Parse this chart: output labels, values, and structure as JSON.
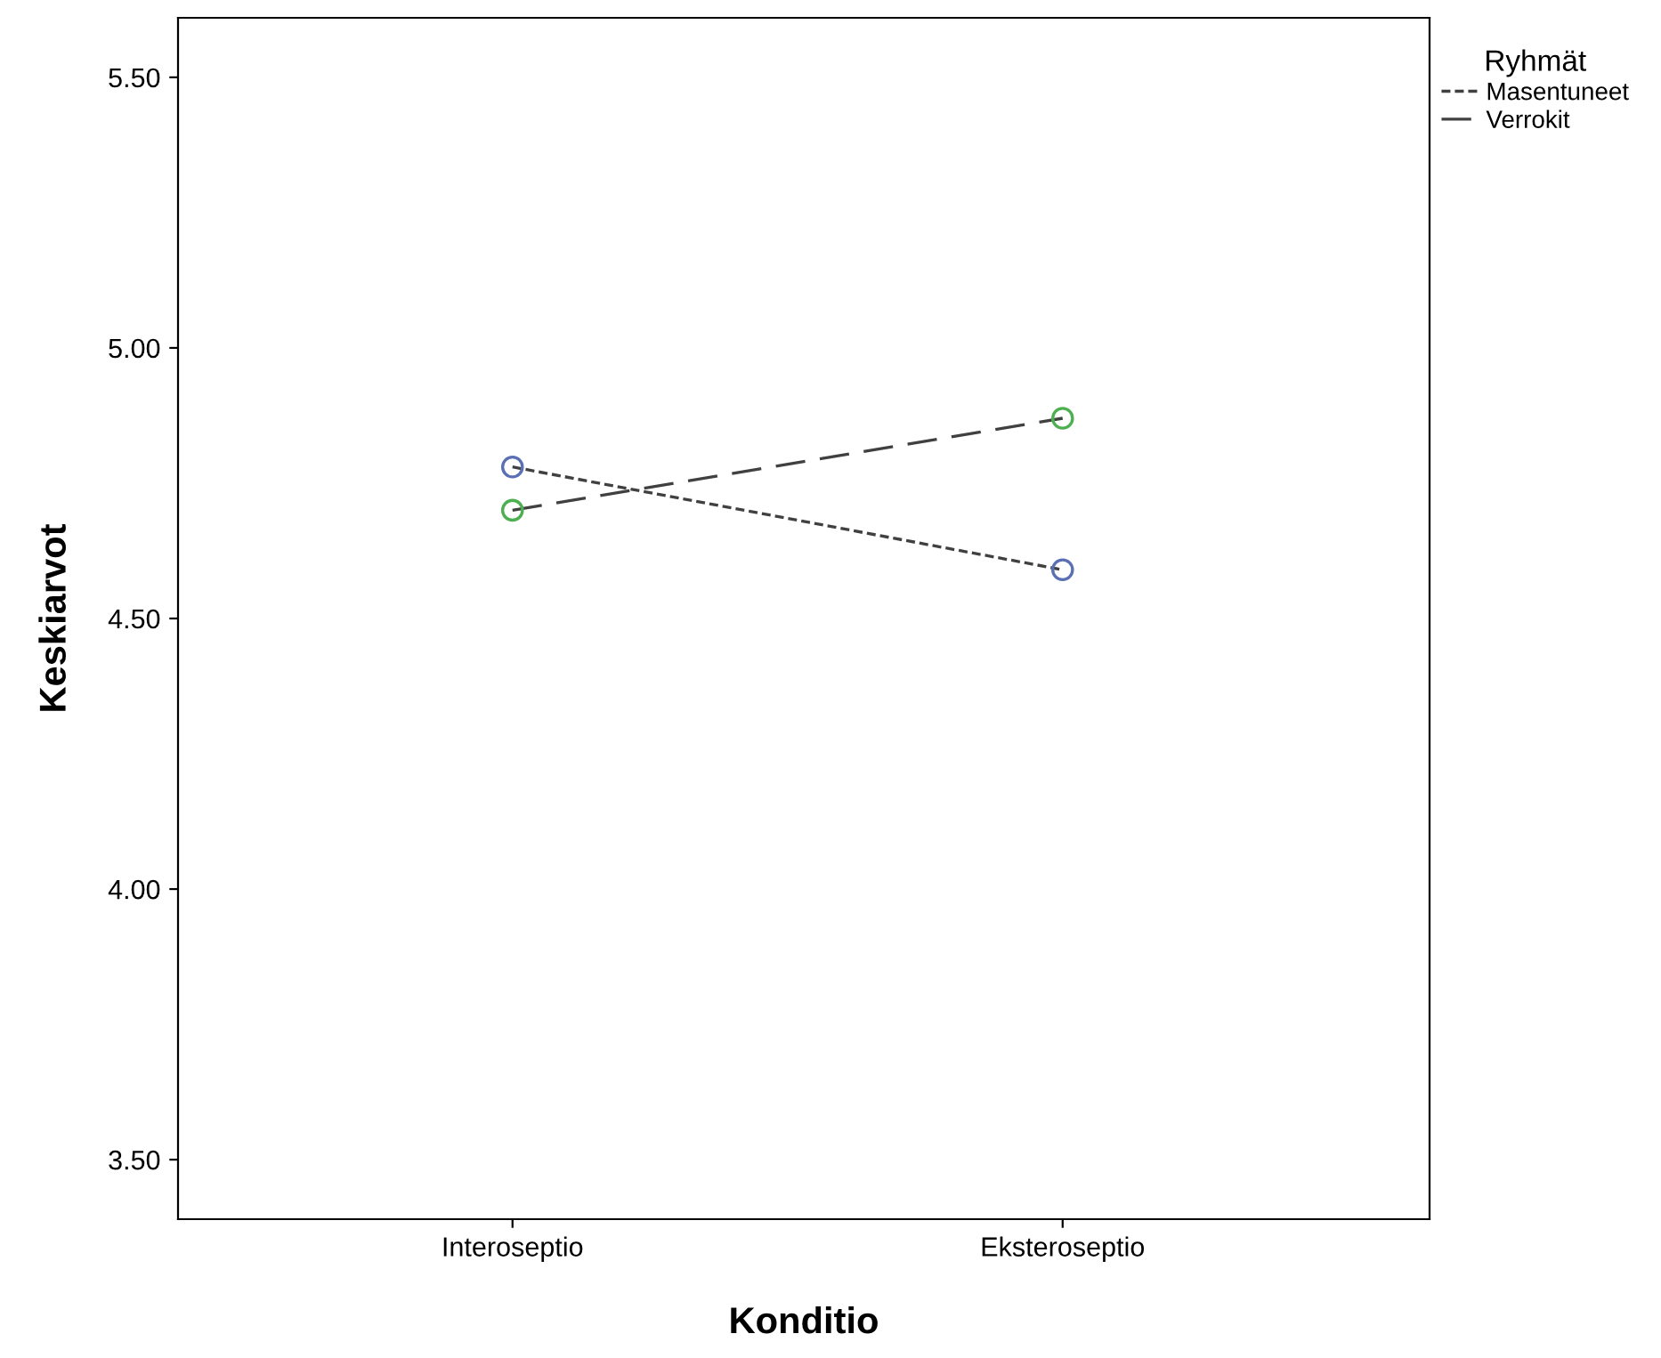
{
  "chart_data": {
    "type": "line",
    "xlabel": "Konditio",
    "ylabel": "Keskiarvot",
    "legend_title": "Ryhmät",
    "categories": [
      "Interoseptio",
      "Eksteroseptio"
    ],
    "series": [
      {
        "name": "Masentuneet",
        "color": "#5b6fb5",
        "line_style": "dotted",
        "values": [
          4.78,
          4.59
        ]
      },
      {
        "name": "Verrokit",
        "color": "#4caf50",
        "line_style": "dashed",
        "values": [
          4.7,
          4.87
        ]
      }
    ],
    "ylim": [
      3.39,
      5.61
    ],
    "yticks": [
      {
        "value": 3.5,
        "label": "3.50"
      },
      {
        "value": 4.0,
        "label": "4.00"
      },
      {
        "value": 4.5,
        "label": "4.50"
      },
      {
        "value": 5.0,
        "label": "5.00"
      },
      {
        "value": 5.5,
        "label": "5.50"
      }
    ],
    "marker": "circle",
    "grid": false,
    "legend": "top right"
  }
}
